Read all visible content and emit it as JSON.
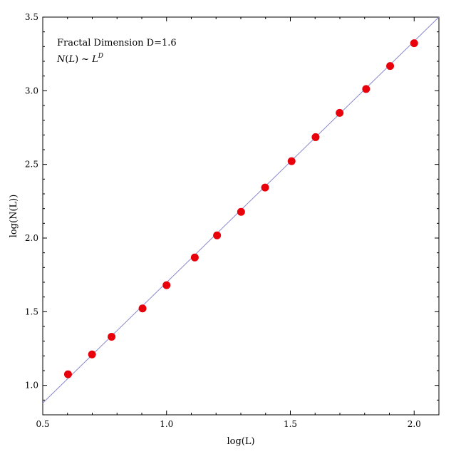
{
  "chart_data": {
    "type": "scatter",
    "title": "",
    "xlabel": "log(L)",
    "ylabel": "log(N(L))",
    "xlim": [
      0.5,
      2.1
    ],
    "ylim": [
      0.8,
      3.5
    ],
    "x_ticks": [
      0.5,
      1.0,
      1.5,
      2.0
    ],
    "y_ticks": [
      1.0,
      1.5,
      2.0,
      2.5,
      3.0,
      3.5
    ],
    "x_tick_labels": [
      "0.5",
      "1.0",
      "1.5",
      "2.0"
    ],
    "y_tick_labels": [
      "1.0",
      "1.5",
      "2.0",
      "2.5",
      "3.0",
      "3.5"
    ],
    "grid": false,
    "series": [
      {
        "type": "scatter",
        "color": "#e8000b",
        "points": [
          {
            "x": 0.602,
            "y": 1.075
          },
          {
            "x": 0.699,
            "y": 1.21
          },
          {
            "x": 0.778,
            "y": 1.33
          },
          {
            "x": 0.903,
            "y": 1.522
          },
          {
            "x": 1.0,
            "y": 1.68
          },
          {
            "x": 1.114,
            "y": 1.868
          },
          {
            "x": 1.204,
            "y": 2.018
          },
          {
            "x": 1.301,
            "y": 2.178
          },
          {
            "x": 1.398,
            "y": 2.343
          },
          {
            "x": 1.505,
            "y": 2.522
          },
          {
            "x": 1.602,
            "y": 2.685
          },
          {
            "x": 1.699,
            "y": 2.85
          },
          {
            "x": 1.806,
            "y": 3.012
          },
          {
            "x": 1.903,
            "y": 3.168
          },
          {
            "x": 2.0,
            "y": 3.323
          }
        ]
      },
      {
        "type": "line",
        "color": "#8888cc",
        "points": [
          {
            "x": 0.5,
            "y": 0.88
          },
          {
            "x": 2.1,
            "y": 3.5
          }
        ]
      }
    ],
    "annotations": {
      "title_text": "Fractal Dimension D=1.6",
      "formula": {
        "N": "N",
        "L_arg": "L",
        "tilde": "~",
        "L_base": "L",
        "exponent": "D"
      }
    }
  }
}
